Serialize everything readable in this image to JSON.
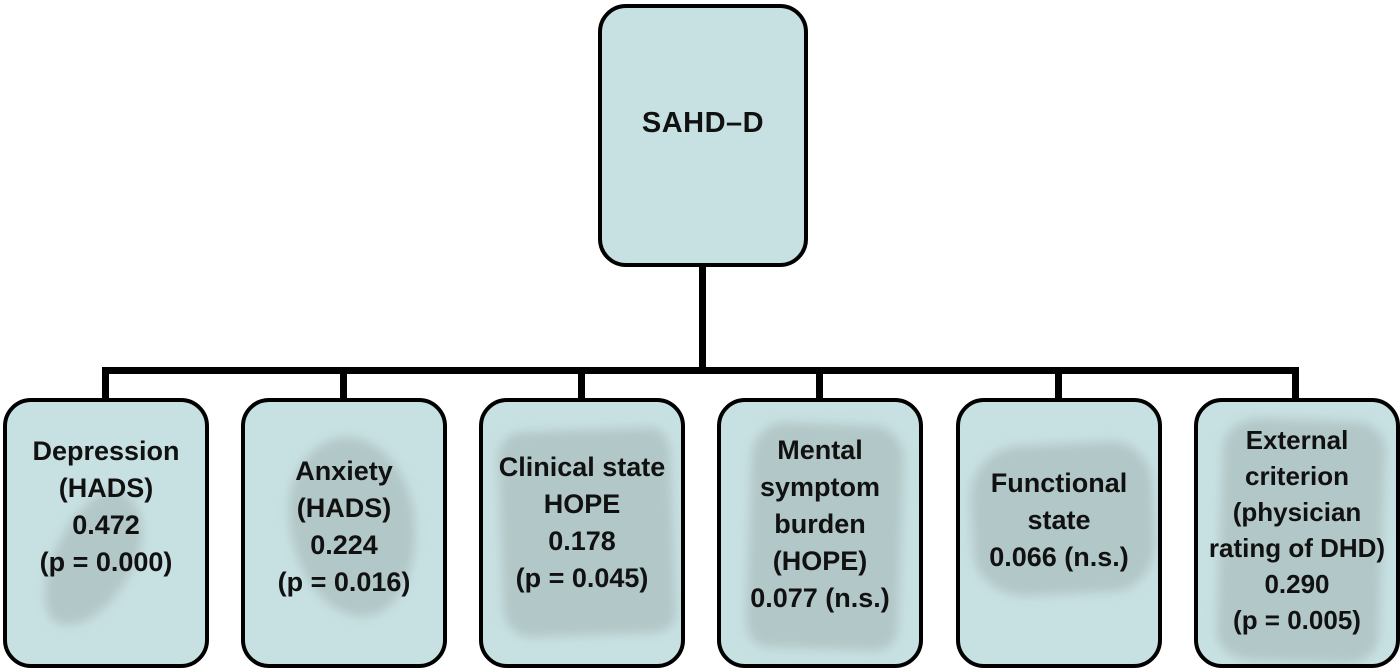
{
  "diagram": {
    "root": {
      "label": "SAHD–D"
    },
    "children": [
      {
        "lines": [
          "Depression",
          "(HADS)",
          "0.472",
          "(p = 0.000)"
        ]
      },
      {
        "lines": [
          "Anxiety",
          "(HADS)",
          "0.224",
          "(p = 0.016)"
        ]
      },
      {
        "lines": [
          "Clinical state",
          "HOPE",
          "0.178",
          "(p = 0.045)"
        ]
      },
      {
        "lines": [
          "Mental",
          "symptom",
          "burden",
          "(HOPE)",
          "0.077 (n.s.)"
        ]
      },
      {
        "lines": [
          "Functional",
          "state",
          "0.066 (n.s.)"
        ]
      },
      {
        "lines": [
          "External",
          "criterion",
          "(physician",
          "rating of DHD)",
          "0.290",
          "(p = 0.005)"
        ]
      }
    ],
    "colors": {
      "box_fill": "#c7e0e2",
      "box_border": "#000000",
      "connector": "#000000",
      "text": "#111111",
      "highlight_smudge": "#97a5a3"
    }
  }
}
